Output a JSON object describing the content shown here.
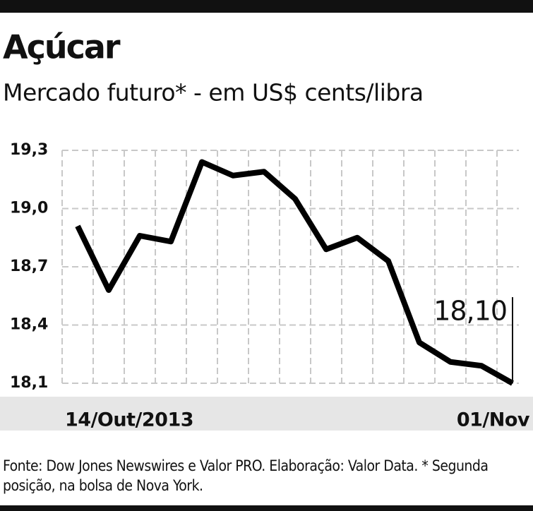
{
  "chart_data": {
    "type": "line",
    "title": "Açúcar",
    "subtitle": "Mercado futuro* - em US$ cents/libra",
    "categories": [
      "14/Out/2013",
      null,
      null,
      null,
      null,
      null,
      null,
      null,
      null,
      null,
      null,
      null,
      null,
      null,
      "01/Nov"
    ],
    "values": [
      18.91,
      18.58,
      18.86,
      18.83,
      19.24,
      19.17,
      19.19,
      19.05,
      18.79,
      18.85,
      18.73,
      18.31,
      18.21,
      18.19,
      18.1
    ],
    "value_labels": [
      null,
      null,
      null,
      null,
      null,
      null,
      null,
      null,
      null,
      null,
      null,
      null,
      null,
      null,
      "18,10"
    ],
    "color": "#000000",
    "ylim": [
      18.1,
      19.3
    ],
    "yticks": [
      {
        "value": 18.1,
        "label": "18,1"
      },
      {
        "value": 18.4,
        "label": "18,4"
      },
      {
        "value": 18.7,
        "label": "18,7"
      },
      {
        "value": 19.0,
        "label": "19,0"
      },
      {
        "value": 19.3,
        "label": "19,3"
      }
    ],
    "grid": true,
    "source": "Fonte: Dow Jones Newswires e Valor PRO. Elaboração: Valor Data. * Segunda posição, na bolsa de Nova York."
  }
}
